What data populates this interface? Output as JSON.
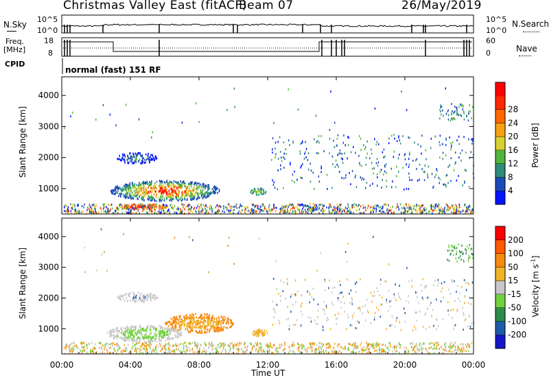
{
  "header": {
    "title": "Christmas Valley East (fitACF)",
    "beam": "Beam 07",
    "date": "26/May/2019"
  },
  "top_panels": {
    "nsky_label": "N.Sky",
    "nsearch_label": "N.Search",
    "noise_ticks_left": [
      "10^5",
      "10^0"
    ],
    "noise_ticks_right": [
      "10^5",
      "10^0"
    ],
    "freq_label_1": "Freq.",
    "freq_label_2": "[MHz]",
    "freq_ticks": [
      "18",
      "8"
    ],
    "nave_label": "Nave",
    "nave_ticks": [
      "60",
      "0"
    ],
    "cpid_label": "CPID",
    "cpid_value": "normal (fast) 151 RF"
  },
  "chart_data": [
    {
      "type": "heatmap",
      "name": "power",
      "xlabel": "Time UT",
      "ylabel": "Slant Range [km]",
      "x_ticks": [
        "00:00",
        "04:00",
        "08:00",
        "12:00",
        "16:00",
        "20:00",
        "00:00"
      ],
      "y_ticks": [
        1000,
        2000,
        3000,
        4000
      ],
      "ylim": [
        180,
        4600
      ],
      "colorbar": {
        "label": "Power [dB]",
        "ticks": [
          "4",
          "8",
          "12",
          "16",
          "20",
          "24",
          "28"
        ],
        "colors": [
          "#0014ff",
          "#1c4ab8",
          "#2f8a7a",
          "#52b43e",
          "#d7d030",
          "#f7a015",
          "#ff6a00",
          "#ff2a00",
          "#ff0000"
        ]
      }
    },
    {
      "type": "heatmap",
      "name": "velocity",
      "xlabel": "Time UT",
      "ylabel": "Slant Range [km]",
      "x_ticks": [
        "00:00",
        "04:00",
        "08:00",
        "12:00",
        "16:00",
        "20:00",
        "00:00"
      ],
      "y_ticks": [
        1000,
        2000,
        3000,
        4000
      ],
      "ylim": [
        180,
        4600
      ],
      "colorbar": {
        "label": "Velocity [m s^-1]",
        "ticks": [
          "200",
          "100",
          "50",
          "15",
          "-15",
          "-50",
          "-100",
          "-200"
        ],
        "colors": [
          "#1515c8",
          "#1f5aa8",
          "#2d8a4a",
          "#72d040",
          "#c8c8c8",
          "#f0b428",
          "#f58a10",
          "#ff5a00",
          "#ff0000"
        ]
      }
    }
  ],
  "axis": {
    "xlabel": "Time UT",
    "power_ylabel": "Slant Range [km]",
    "velocity_ylabel": "Slant Range [km]",
    "power_cbar_label": "Power [dB]",
    "velocity_cbar_label": "Velocity [m s",
    "velocity_cbar_sup": "-1",
    "velocity_cbar_close": "]"
  }
}
